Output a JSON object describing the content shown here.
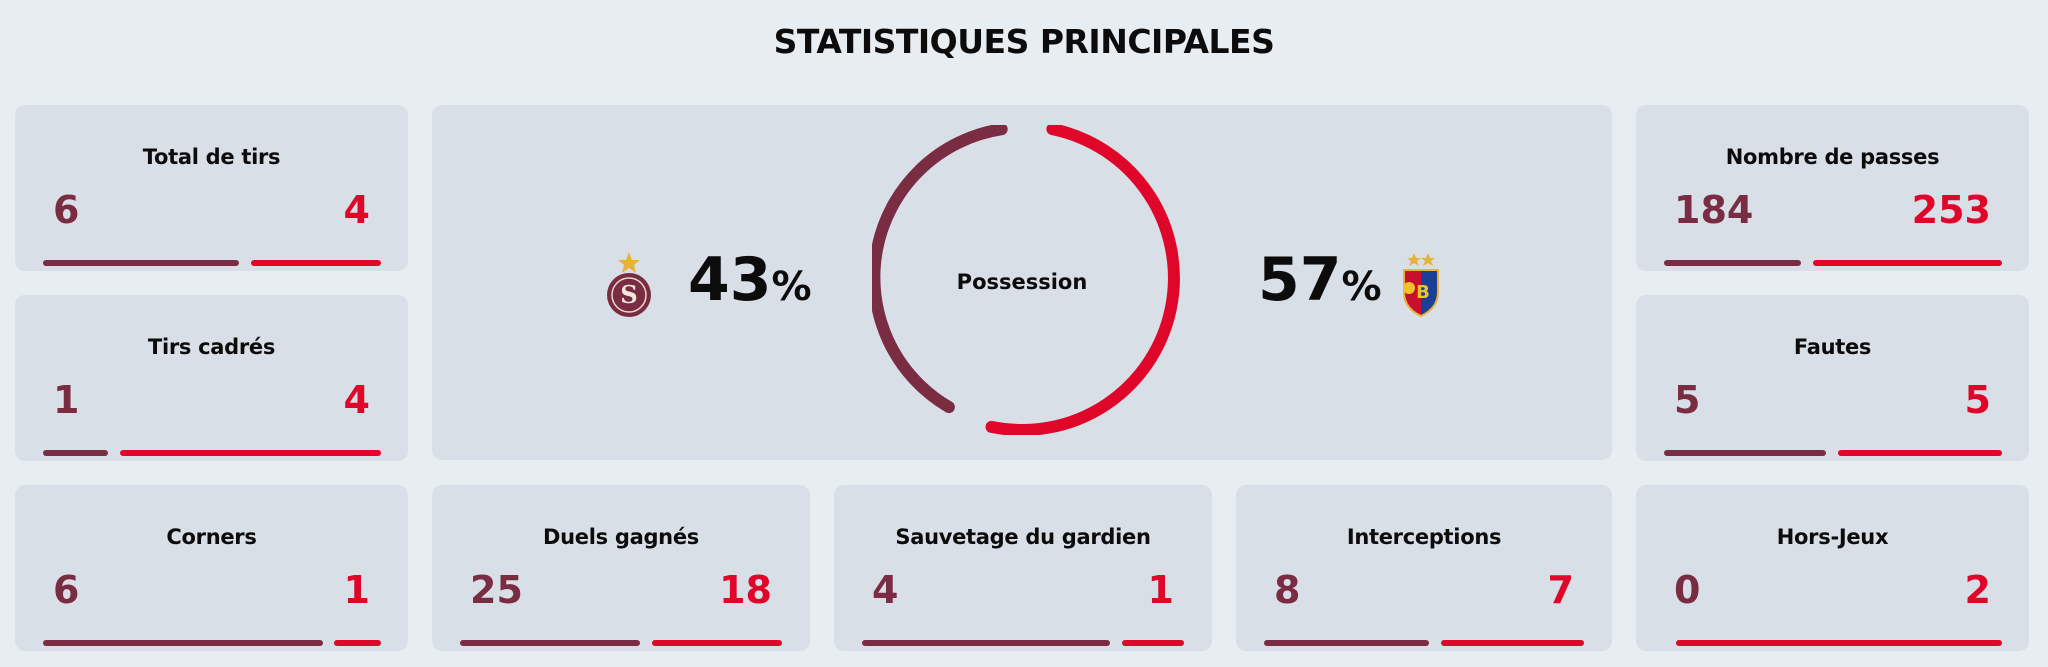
{
  "title": "STATISTIQUES PRINCIPALES",
  "colors": {
    "home": "#7a2c42",
    "away": "#e0062a",
    "card": "#d9dfe7",
    "background": "#e8edf1"
  },
  "possession": {
    "label": "Possession",
    "home": "43",
    "away": "57",
    "unit": "%"
  },
  "stats": {
    "shots": {
      "label": "Total de tirs",
      "home": "6",
      "away": "4"
    },
    "shots_on_target": {
      "label": "Tirs cadrés",
      "home": "1",
      "away": "4"
    },
    "corners": {
      "label": "Corners",
      "home": "6",
      "away": "1"
    },
    "duels": {
      "label": "Duels gagnés",
      "home": "25",
      "away": "18"
    },
    "saves": {
      "label": "Sauvetage du gardien",
      "home": "4",
      "away": "1"
    },
    "interceptions": {
      "label": "Interceptions",
      "home": "8",
      "away": "7"
    },
    "offsides": {
      "label": "Hors-Jeux",
      "home": "0",
      "away": "2"
    },
    "passes": {
      "label": "Nombre de passes",
      "home": "184",
      "away": "253"
    },
    "fouls": {
      "label": "Fautes",
      "home": "5",
      "away": "5"
    }
  }
}
